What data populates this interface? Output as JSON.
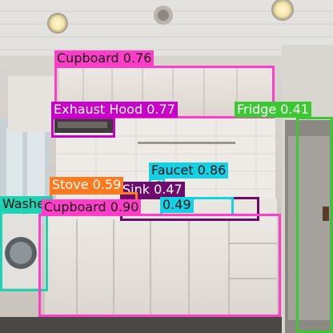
{
  "photo": {
    "scene": "kitchen-interior"
  },
  "detections": [
    {
      "label": "Cupboard 0.76",
      "color": "#ff3dc8",
      "text": "dark"
    },
    {
      "label": "Exhaust Hood 0.77",
      "color": "#c800c8",
      "text": "light"
    },
    {
      "label": "Fridge 0.41",
      "color": "#3cc832",
      "text": "light"
    },
    {
      "label": "Faucet 0.86",
      "color": "#14d2e6",
      "text": "dark"
    },
    {
      "label": "Sink 0.47",
      "color": "#6e0a6e",
      "text": "light"
    },
    {
      "label": "0.49",
      "color": "#14d2e6",
      "text": "dark"
    },
    {
      "label": "Stove 0.59",
      "color": "#ff7a1e",
      "text": "light"
    },
    {
      "label": "Washer",
      "color": "#1ed2b4",
      "text": "dark"
    },
    {
      "label": "Cupboard 0.90",
      "color": "#ff3dc8",
      "text": "dark"
    }
  ]
}
